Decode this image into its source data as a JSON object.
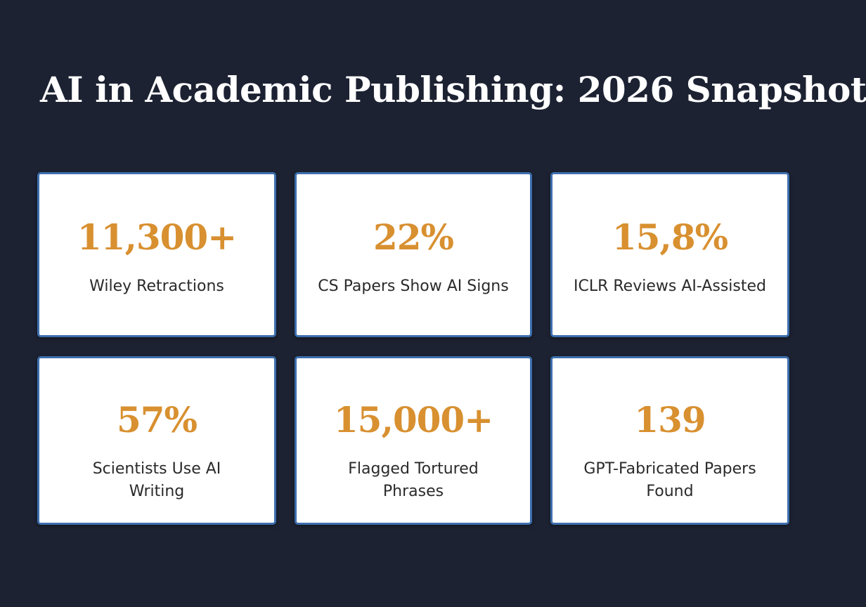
{
  "page": {
    "title": "AI in Academic Publishing: 2026 Snapshot"
  },
  "colors": {
    "background": "#1c2232",
    "card_background": "#ffffff",
    "card_border": "#3d6fae",
    "value_accent": "#d89030",
    "label_text": "#2a2a2a",
    "title_text": "#ffffff"
  },
  "stats": [
    {
      "value": "11,300+",
      "label": "Wiley Retractions"
    },
    {
      "value": "22%",
      "label": "CS Papers Show AI Signs"
    },
    {
      "value": "15,8%",
      "label": "ICLR Reviews AI-Assisted"
    },
    {
      "value": "57%",
      "label": "Scientists Use AI Writing"
    },
    {
      "value": "15,000+",
      "label": "Flagged Tortured Phrases"
    },
    {
      "value": "139",
      "label": "GPT-Fabricated Papers Found"
    }
  ]
}
